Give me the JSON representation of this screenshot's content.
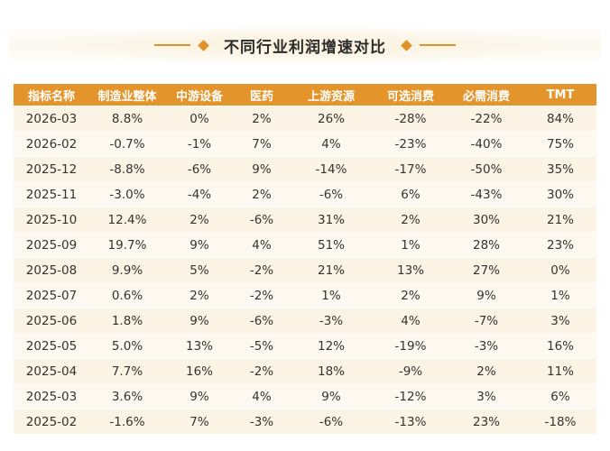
{
  "title": "不同行业利润增速对比",
  "colors": {
    "accent": "#e3952b",
    "row_light": "#fdf9f1",
    "row_tint": "#fbf3e4"
  },
  "table": {
    "headers": [
      "指标名称",
      "制造业整体",
      "中游设备",
      "医药",
      "上游资源",
      "可选消费",
      "必需消费",
      "TMT"
    ],
    "rows": [
      [
        "2026-03",
        "8.8%",
        "0%",
        "2%",
        "26%",
        "-28%",
        "-22%",
        "84%"
      ],
      [
        "2026-02",
        "-0.7%",
        "-1%",
        "7%",
        "4%",
        "-23%",
        "-40%",
        "75%"
      ],
      [
        "2025-12",
        "-8.8%",
        "-6%",
        "9%",
        "-14%",
        "-17%",
        "-50%",
        "35%"
      ],
      [
        "2025-11",
        "-3.0%",
        "-4%",
        "2%",
        "-6%",
        "6%",
        "-43%",
        "30%"
      ],
      [
        "2025-10",
        "12.4%",
        "2%",
        "-6%",
        "31%",
        "2%",
        "30%",
        "21%"
      ],
      [
        "2025-09",
        "19.7%",
        "9%",
        "4%",
        "51%",
        "1%",
        "28%",
        "23%"
      ],
      [
        "2025-08",
        "9.9%",
        "5%",
        "-2%",
        "21%",
        "13%",
        "27%",
        "0%"
      ],
      [
        "2025-07",
        "0.6%",
        "2%",
        "-2%",
        "1%",
        "2%",
        "9%",
        "1%"
      ],
      [
        "2025-06",
        "1.8%",
        "9%",
        "-6%",
        "-3%",
        "4%",
        "-7%",
        "3%"
      ],
      [
        "2025-05",
        "5.0%",
        "13%",
        "-5%",
        "12%",
        "-19%",
        "-3%",
        "16%"
      ],
      [
        "2025-04",
        "7.7%",
        "16%",
        "-2%",
        "18%",
        "-9%",
        "2%",
        "11%"
      ],
      [
        "2025-03",
        "3.6%",
        "9%",
        "4%",
        "9%",
        "-12%",
        "3%",
        "6%"
      ],
      [
        "2025-02",
        "-1.6%",
        "7%",
        "-3%",
        "-6%",
        "-13%",
        "23%",
        "-18%"
      ]
    ]
  }
}
